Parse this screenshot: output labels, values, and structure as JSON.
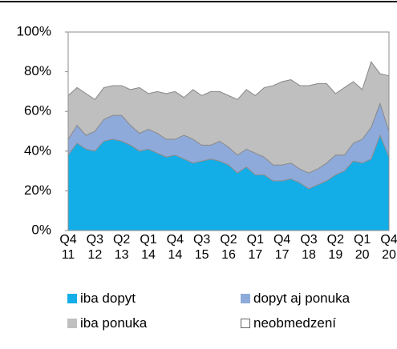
{
  "chart_data": {
    "type": "stacked_area",
    "categories": [
      "Q4 11",
      null,
      null,
      "Q3 12",
      null,
      null,
      "Q2 13",
      null,
      null,
      "Q1 14",
      null,
      null,
      "Q4 14",
      null,
      null,
      "Q3 15",
      null,
      null,
      "Q2 16",
      null,
      null,
      "Q1 17",
      null,
      null,
      "Q4 17",
      null,
      null,
      "Q3 18",
      null,
      null,
      "Q2 19",
      null,
      null,
      "Q1 20",
      null,
      null,
      "Q4 20"
    ],
    "series": [
      {
        "name": "iba dopyt",
        "color": "#13aee8",
        "values": [
          38,
          44,
          41,
          40,
          45,
          46,
          45,
          43,
          40,
          41,
          39,
          37,
          38,
          36,
          34,
          35,
          36,
          35,
          33,
          29,
          32,
          28,
          28,
          25,
          25,
          26,
          24,
          21,
          23,
          25,
          28,
          30,
          35,
          34,
          36,
          48,
          37
        ]
      },
      {
        "name": "dopyt aj ponuka",
        "color": "#8eaadb",
        "values": [
          8,
          9,
          7,
          10,
          11,
          12,
          13,
          10,
          9,
          10,
          10,
          9,
          8,
          12,
          12,
          8,
          7,
          10,
          9,
          9,
          9,
          11,
          9,
          8,
          8,
          8,
          7,
          8,
          8,
          9,
          10,
          8,
          9,
          12,
          16,
          16,
          13
        ]
      },
      {
        "name": "iba ponuka",
        "color": "#bfbfbf",
        "values": [
          22,
          19,
          21,
          16,
          16,
          15,
          15,
          18,
          23,
          18,
          21,
          23,
          24,
          19,
          25,
          25,
          27,
          25,
          26,
          28,
          30,
          29,
          35,
          40,
          42,
          42,
          42,
          44,
          43,
          40,
          31,
          34,
          31,
          25,
          33,
          15,
          28
        ]
      },
      {
        "name": "neobmedzení",
        "color": "#ffffff",
        "values": [
          32,
          28,
          31,
          34,
          28,
          27,
          27,
          29,
          28,
          31,
          30,
          31,
          30,
          33,
          29,
          32,
          30,
          30,
          32,
          34,
          29,
          32,
          28,
          27,
          25,
          24,
          27,
          27,
          26,
          26,
          31,
          28,
          25,
          29,
          15,
          21,
          22
        ]
      }
    ],
    "ylim": [
      0,
      100
    ],
    "yticks": [
      {
        "value": 0,
        "label": "0%"
      },
      {
        "value": 20,
        "label": "20%"
      },
      {
        "value": 40,
        "label": "40%"
      },
      {
        "value": 60,
        "label": "60%"
      },
      {
        "value": 80,
        "label": "80%"
      },
      {
        "value": 100,
        "label": "100%"
      }
    ]
  }
}
